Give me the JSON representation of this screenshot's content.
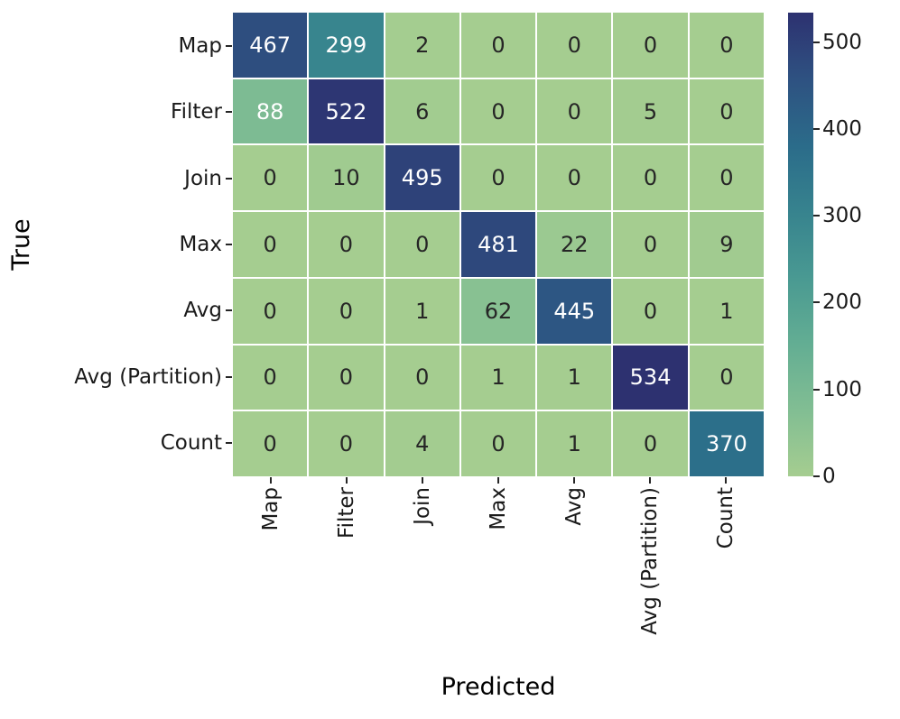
{
  "figure": {
    "background": "#ffffff",
    "axis_text_color": "#1a1a1a"
  },
  "chart_data": {
    "type": "heatmap",
    "title": "",
    "xlabel": "Predicted",
    "ylabel": "True",
    "x_categories": [
      "Map",
      "Filter",
      "Join",
      "Max",
      "Avg",
      "Avg (Partition)",
      "Count"
    ],
    "y_categories": [
      "Map",
      "Filter",
      "Join",
      "Max",
      "Avg",
      "Avg (Partition)",
      "Count"
    ],
    "matrix": [
      [
        467,
        299,
        2,
        0,
        0,
        0,
        0
      ],
      [
        88,
        522,
        6,
        0,
        0,
        5,
        0
      ],
      [
        0,
        10,
        495,
        0,
        0,
        0,
        0
      ],
      [
        0,
        0,
        0,
        481,
        22,
        0,
        9
      ],
      [
        0,
        0,
        1,
        62,
        445,
        0,
        1
      ],
      [
        0,
        0,
        0,
        1,
        1,
        534,
        0
      ],
      [
        0,
        0,
        4,
        0,
        1,
        0,
        370
      ]
    ],
    "vmin": 0,
    "vmax": 534,
    "colorbar_ticks": [
      0,
      100,
      200,
      300,
      400,
      500
    ],
    "colormap_name": "crest",
    "colormap_stops": [
      [
        0.0,
        "#a5cd90"
      ],
      [
        0.14,
        "#82be93"
      ],
      [
        0.29,
        "#62ad93"
      ],
      [
        0.43,
        "#499992"
      ],
      [
        0.57,
        "#37838e"
      ],
      [
        0.71,
        "#2b6c8a"
      ],
      [
        0.86,
        "#2e5181"
      ],
      [
        1.0,
        "#2d3170"
      ]
    ],
    "gridline_color": "#ffffff",
    "annotation_dark_color": "#262626",
    "annotation_light_color": "#ffffff",
    "legend_position": "right-colorbar",
    "grid": "off"
  }
}
